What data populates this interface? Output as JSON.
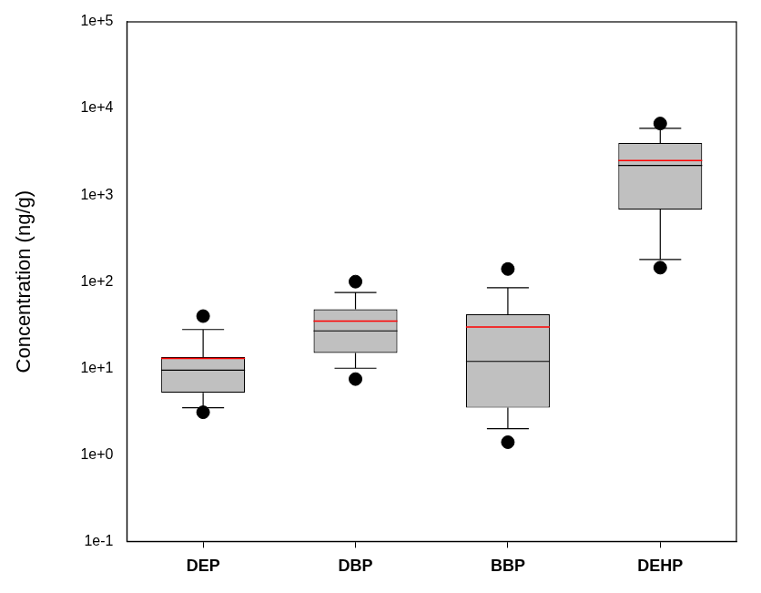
{
  "chart_data": {
    "type": "box",
    "y_label": "Concentration (ng/g)",
    "categories": [
      "DEP",
      "DBP",
      "BBP",
      "DEHP"
    ],
    "boxes": [
      {
        "whisker_low": 3.5,
        "q1": 5.2,
        "median": 9.5,
        "q3": 13.5,
        "whisker_high": 28,
        "mean": 13,
        "outliers": [
          3.1,
          40
        ]
      },
      {
        "whisker_low": 10,
        "q1": 15,
        "median": 27,
        "q3": 48,
        "whisker_high": 75,
        "mean": 35,
        "outliers": [
          7.5,
          100
        ]
      },
      {
        "whisker_low": 2,
        "q1": 3.5,
        "median": 12,
        "q3": 42,
        "whisker_high": 85,
        "mean": 30,
        "outliers": [
          1.4,
          140
        ]
      },
      {
        "whisker_low": 180,
        "q1": 680,
        "median": 2200,
        "q3": 4000,
        "whisker_high": 5900,
        "mean": 2500,
        "outliers": [
          145,
          6700
        ]
      }
    ],
    "color": "#c0c0c0",
    "log": "y",
    "grid": false,
    "ylim": [
      0.1,
      100000
    ],
    "yticks": [
      {
        "value": 0.1,
        "label": "1e-1"
      },
      {
        "value": 1,
        "label": "1e+0"
      },
      {
        "value": 10,
        "label": "1e+1"
      },
      {
        "value": 100,
        "label": "1e+2"
      },
      {
        "value": 1000,
        "label": "1e+3"
      },
      {
        "value": 10000,
        "label": "1e+4"
      },
      {
        "value": 100000,
        "label": "1e+5"
      }
    ]
  }
}
